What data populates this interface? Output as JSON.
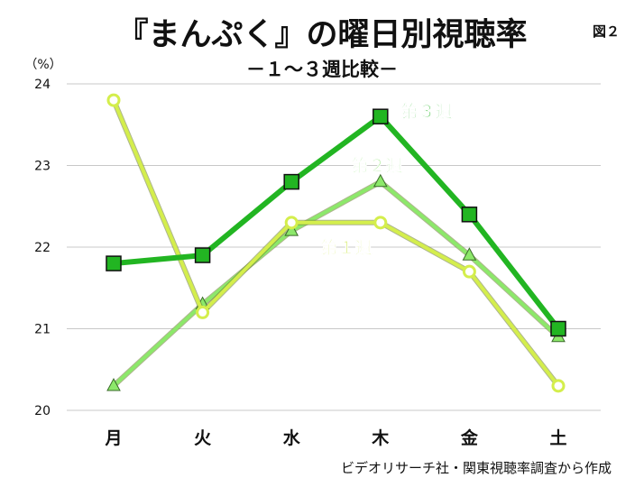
{
  "chart_data": {
    "type": "line",
    "title": "『まんぷく』の曜日別視聴率",
    "subtitle": "－１～３週比較－",
    "figure_label": "図２",
    "y_unit": "（%）",
    "source": "ビデオリサーチ社・関東視聴率調査から作成",
    "categories": [
      "月",
      "火",
      "水",
      "木",
      "金",
      "土"
    ],
    "ylim": [
      20,
      24
    ],
    "yticks": [
      "20",
      "21",
      "22",
      "23",
      "24"
    ],
    "grid": "horizontal",
    "series": [
      {
        "name": "第１週",
        "values": [
          23.8,
          21.2,
          22.3,
          22.3,
          21.7,
          20.3
        ],
        "color": "#d4ee4c",
        "marker": "circle"
      },
      {
        "name": "第２週",
        "values": [
          20.3,
          21.3,
          22.2,
          22.8,
          21.9,
          20.9
        ],
        "color": "#8ce86a",
        "marker": "triangle"
      },
      {
        "name": "第３週",
        "values": [
          21.8,
          21.9,
          22.8,
          23.6,
          22.4,
          21.0
        ],
        "color": "#22b522",
        "marker": "square"
      }
    ]
  }
}
